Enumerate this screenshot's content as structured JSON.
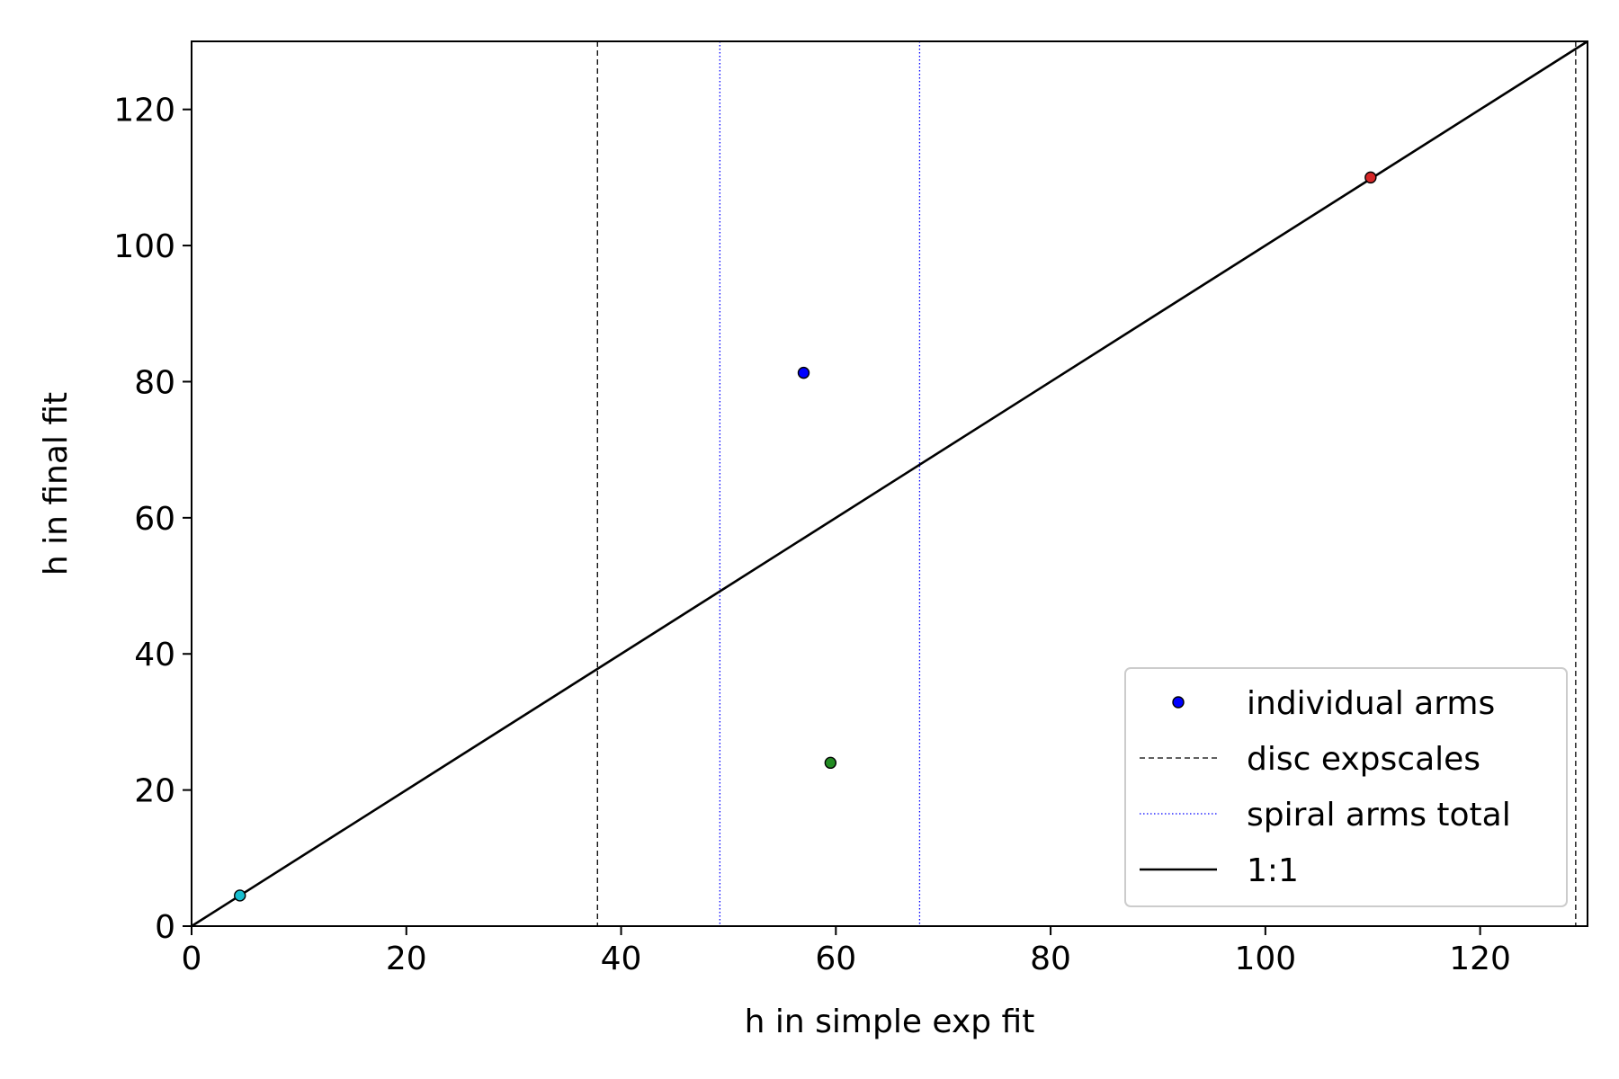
{
  "chart_data": {
    "type": "scatter",
    "xlabel": "h in simple exp fit",
    "ylabel": "h in final fit",
    "xlim": [
      0,
      130
    ],
    "ylim": [
      0,
      130
    ],
    "xticks": [
      0,
      20,
      40,
      60,
      80,
      100,
      120
    ],
    "yticks": [
      0,
      20,
      40,
      60,
      80,
      100,
      120
    ],
    "grid": false,
    "points": [
      {
        "x": 4.5,
        "y": 4.5,
        "color": "#17becf"
      },
      {
        "x": 57.0,
        "y": 81.3,
        "color": "#0000ff"
      },
      {
        "x": 59.5,
        "y": 24.0,
        "color": "#228b22"
      },
      {
        "x": 109.8,
        "y": 110.0,
        "color": "#d62728"
      }
    ],
    "disc_expscales": [
      37.8,
      128.9
    ],
    "spiral_arms_total": [
      49.2,
      67.8
    ],
    "one_to_one": [
      [
        0,
        0
      ],
      [
        130,
        130
      ]
    ],
    "legend": {
      "location": "lower right",
      "entries": [
        {
          "label": "individual arms",
          "kind": "marker",
          "color": "#0000ff"
        },
        {
          "label": "disc expscales",
          "kind": "dashed",
          "color": "#000000"
        },
        {
          "label": "spiral arms total",
          "kind": "dotted",
          "color": "#0000ff"
        },
        {
          "label": "1:1",
          "kind": "solid",
          "color": "#000000"
        }
      ]
    }
  }
}
